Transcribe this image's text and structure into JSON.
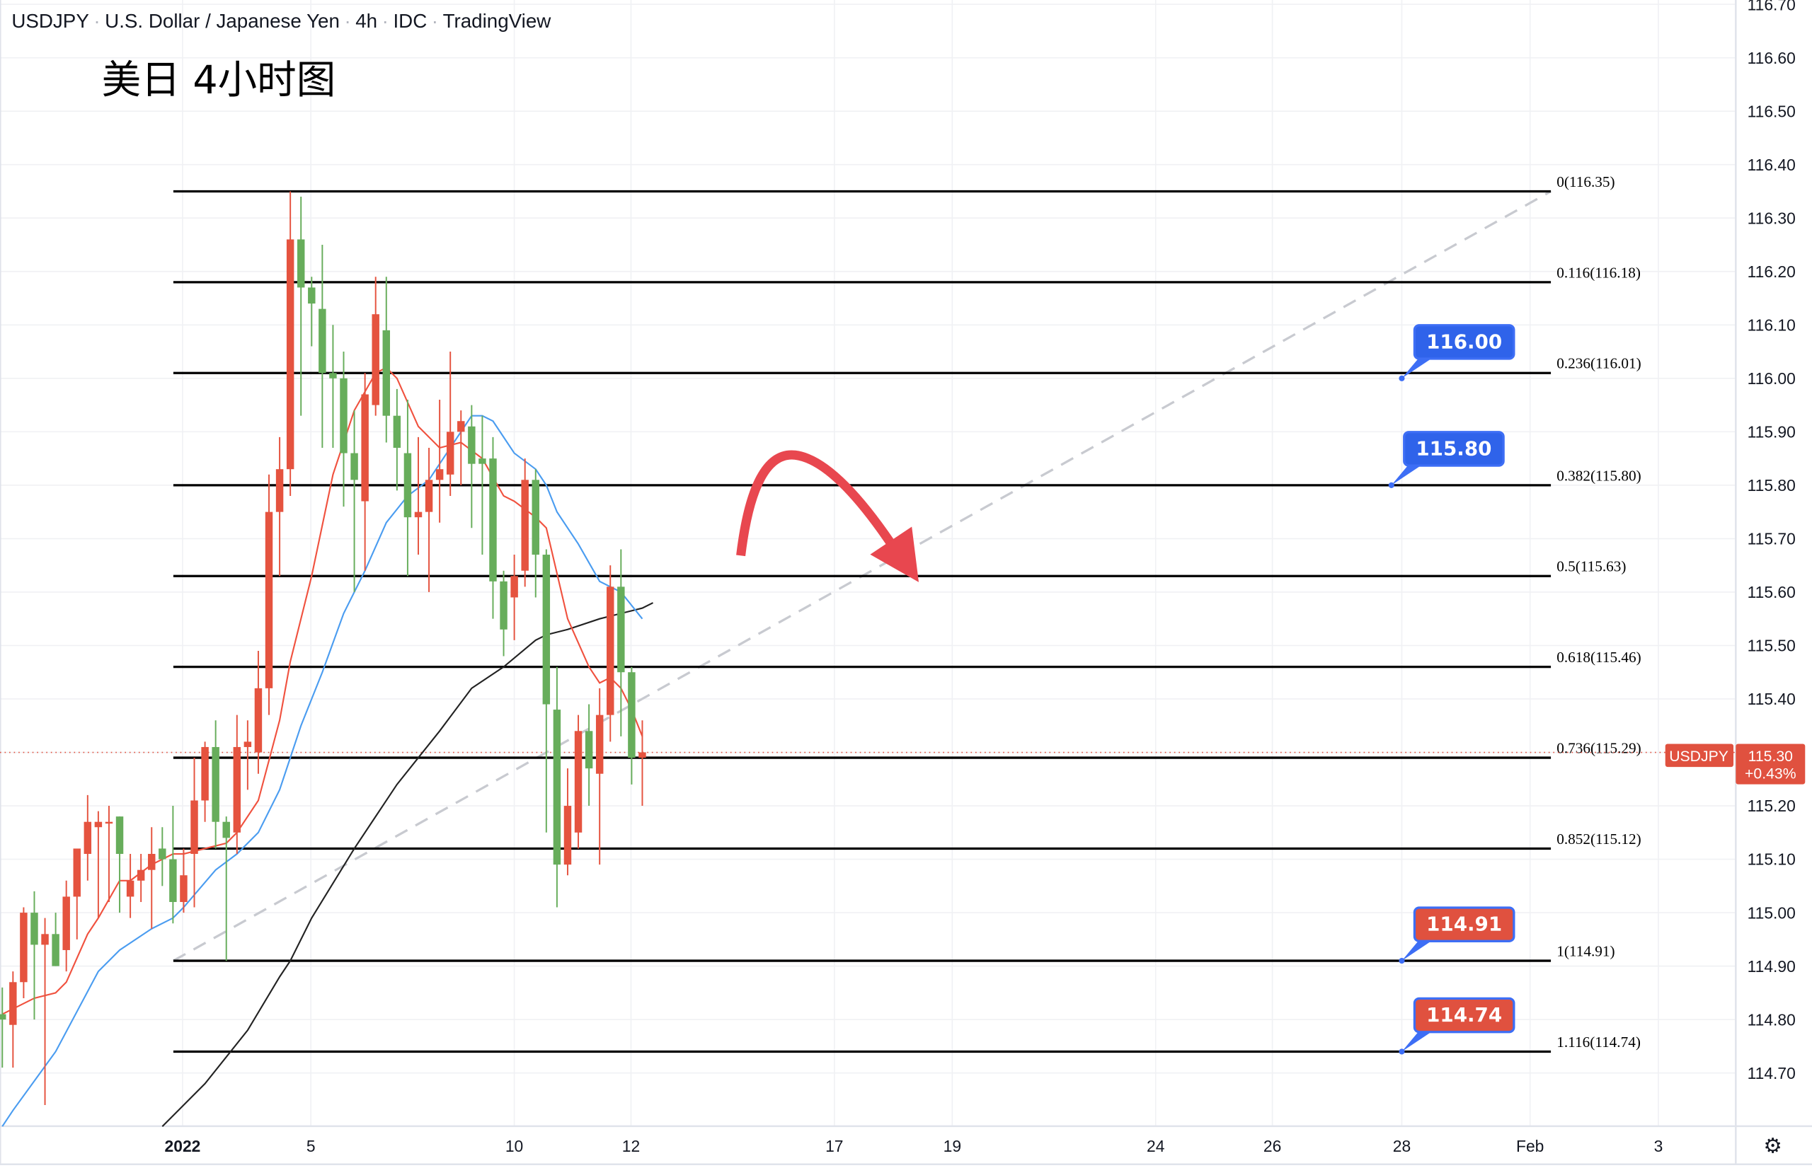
{
  "header": {
    "symbol": "USDJPY",
    "description": "U.S. Dollar / Japanese Yen",
    "interval": "4h",
    "source": "IDC",
    "platform": "TradingView"
  },
  "annotation_title": "美日 4小时图",
  "settings_icon": "gear-icon",
  "colors": {
    "up": "#e5533f",
    "down": "#67ad5b",
    "ma_short": "#f0513e",
    "ma_mid": "#4a9cf0",
    "ma_long": "#222222",
    "fib_line": "#000000",
    "trend_dashed": "#c8cad0",
    "arrow": "#e8474f",
    "callout_blue": "#2f63ea",
    "callout_red": "#e0513f",
    "callout_border": "#3d6ef5",
    "price_tag": "#e0513f"
  },
  "current_price": {
    "symbol_tag": "USDJPY",
    "price": "115.30",
    "change": "+0.43%",
    "value": 115.3
  },
  "callouts": [
    {
      "label": "116.00",
      "value": 116.0,
      "style": "blue"
    },
    {
      "label": "115.80",
      "value": 115.8,
      "style": "blue"
    },
    {
      "label": "114.91",
      "value": 114.91,
      "style": "red"
    },
    {
      "label": "114.74",
      "value": 114.74,
      "style": "red"
    }
  ],
  "fib": {
    "anchor_high": 116.35,
    "anchor_low": 114.91,
    "levels": [
      {
        "label": "0(116.35)",
        "price": 116.35
      },
      {
        "label": "0.116(116.18)",
        "price": 116.18
      },
      {
        "label": "0.236(116.01)",
        "price": 116.01
      },
      {
        "label": "0.382(115.80)",
        "price": 115.8
      },
      {
        "label": "0.5(115.63)",
        "price": 115.63
      },
      {
        "label": "0.618(115.46)",
        "price": 115.46
      },
      {
        "label": "0.736(115.29)",
        "price": 115.29
      },
      {
        "label": "0.852(115.12)",
        "price": 115.12
      },
      {
        "label": "1(114.91)",
        "price": 114.91
      },
      {
        "label": "1.116(114.74)",
        "price": 114.74
      }
    ]
  },
  "chart_data": {
    "type": "candlestick",
    "title": "USDJPY · U.S. Dollar / Japanese Yen · 4h · IDC · TradingView",
    "ylim": [
      114.6,
      116.7
    ],
    "grid": true,
    "y_ticks": [
      "116.70",
      "116.60",
      "116.50",
      "116.40",
      "116.30",
      "116.20",
      "116.10",
      "116.00",
      "115.90",
      "115.80",
      "115.70",
      "115.60",
      "115.50",
      "115.40",
      "115.30",
      "115.20",
      "115.10",
      "115.00",
      "114.90",
      "114.80",
      "114.70"
    ],
    "x_ticks": [
      "2022",
      "5",
      "10",
      "12",
      "17",
      "19",
      "24",
      "26",
      "28",
      "Feb",
      "3"
    ],
    "candles_ohlc": [
      [
        114.81,
        114.86,
        114.71,
        114.8
      ],
      [
        114.79,
        114.89,
        114.71,
        114.87
      ],
      [
        114.87,
        115.01,
        114.84,
        115.0
      ],
      [
        115.0,
        115.04,
        114.8,
        114.94
      ],
      [
        114.94,
        114.99,
        114.64,
        114.96
      ],
      [
        114.96,
        115.0,
        114.9,
        114.9
      ],
      [
        114.93,
        115.06,
        114.89,
        115.03
      ],
      [
        115.03,
        115.12,
        114.95,
        115.12
      ],
      [
        115.11,
        115.22,
        115.06,
        115.17
      ],
      [
        115.16,
        115.19,
        114.99,
        115.17
      ],
      [
        115.17,
        115.2,
        115.02,
        115.17
      ],
      [
        115.18,
        115.18,
        115.0,
        115.11
      ],
      [
        115.03,
        115.11,
        114.99,
        115.06
      ],
      [
        115.06,
        115.11,
        115.02,
        115.08
      ],
      [
        115.08,
        115.16,
        114.97,
        115.11
      ],
      [
        115.12,
        115.16,
        115.05,
        115.1
      ],
      [
        115.1,
        115.2,
        114.98,
        115.02
      ],
      [
        115.02,
        115.12,
        115.0,
        115.07
      ],
      [
        115.11,
        115.29,
        115.01,
        115.21
      ],
      [
        115.21,
        115.32,
        115.17,
        115.31
      ],
      [
        115.31,
        115.36,
        115.12,
        115.17
      ],
      [
        115.17,
        115.18,
        114.91,
        115.14
      ],
      [
        115.15,
        115.37,
        115.11,
        115.31
      ],
      [
        115.31,
        115.36,
        115.23,
        115.32
      ],
      [
        115.3,
        115.49,
        115.26,
        115.42
      ],
      [
        115.42,
        115.82,
        115.37,
        115.75
      ],
      [
        115.75,
        115.89,
        115.63,
        115.83
      ],
      [
        115.83,
        116.35,
        115.78,
        116.26
      ],
      [
        116.26,
        116.34,
        115.93,
        116.17
      ],
      [
        116.17,
        116.19,
        116.06,
        116.14
      ],
      [
        116.13,
        116.25,
        115.87,
        116.01
      ],
      [
        116.01,
        116.1,
        115.87,
        116.0
      ],
      [
        116.0,
        116.05,
        115.76,
        115.86
      ],
      [
        115.86,
        115.94,
        115.6,
        115.81
      ],
      [
        115.77,
        116.01,
        115.64,
        115.97
      ],
      [
        115.95,
        116.19,
        115.93,
        116.12
      ],
      [
        116.09,
        116.19,
        115.88,
        115.93
      ],
      [
        115.93,
        115.98,
        115.79,
        115.87
      ],
      [
        115.86,
        115.96,
        115.63,
        115.74
      ],
      [
        115.74,
        115.89,
        115.67,
        115.75
      ],
      [
        115.75,
        115.87,
        115.6,
        115.81
      ],
      [
        115.81,
        115.96,
        115.73,
        115.83
      ],
      [
        115.82,
        116.05,
        115.78,
        115.9
      ],
      [
        115.9,
        115.94,
        115.8,
        115.92
      ],
      [
        115.91,
        115.95,
        115.72,
        115.84
      ],
      [
        115.85,
        115.93,
        115.67,
        115.84
      ],
      [
        115.85,
        115.89,
        115.55,
        115.62
      ],
      [
        115.62,
        115.64,
        115.48,
        115.53
      ],
      [
        115.59,
        115.67,
        115.51,
        115.63
      ],
      [
        115.64,
        115.85,
        115.61,
        115.81
      ],
      [
        115.81,
        115.83,
        115.59,
        115.67
      ],
      [
        115.67,
        115.68,
        115.15,
        115.39
      ],
      [
        115.38,
        115.46,
        115.01,
        115.09
      ],
      [
        115.09,
        115.27,
        115.07,
        115.2
      ],
      [
        115.15,
        115.37,
        115.12,
        115.34
      ],
      [
        115.34,
        115.39,
        115.2,
        115.27
      ],
      [
        115.26,
        115.42,
        115.09,
        115.37
      ],
      [
        115.37,
        115.65,
        115.32,
        115.61
      ],
      [
        115.61,
        115.68,
        115.33,
        115.45
      ],
      [
        115.45,
        115.46,
        115.24,
        115.29
      ],
      [
        115.29,
        115.36,
        115.2,
        115.3
      ]
    ],
    "ma_short": [
      [
        1,
        114.81
      ],
      [
        4,
        114.84
      ],
      [
        6,
        114.85
      ],
      [
        7,
        114.87
      ],
      [
        9,
        114.96
      ],
      [
        10,
        114.99
      ],
      [
        12,
        115.06
      ],
      [
        13,
        115.06
      ],
      [
        15,
        115.09
      ],
      [
        17,
        115.11
      ],
      [
        18,
        115.11
      ],
      [
        20,
        115.12
      ],
      [
        22,
        115.13
      ],
      [
        23,
        115.15
      ],
      [
        25,
        115.21
      ],
      [
        27,
        115.36
      ],
      [
        28,
        115.47
      ],
      [
        30,
        115.63
      ],
      [
        32,
        115.82
      ],
      [
        34,
        115.94
      ],
      [
        36,
        116.01
      ],
      [
        37,
        116.02
      ],
      [
        38,
        116.0
      ],
      [
        40,
        115.91
      ],
      [
        42,
        115.87
      ],
      [
        44,
        115.88
      ],
      [
        46,
        115.85
      ],
      [
        48,
        115.78
      ],
      [
        49,
        115.77
      ],
      [
        51,
        115.74
      ],
      [
        52,
        115.72
      ],
      [
        54,
        115.55
      ],
      [
        56,
        115.46
      ],
      [
        57,
        115.43
      ],
      [
        58,
        115.44
      ],
      [
        59,
        115.42
      ],
      [
        60,
        115.38
      ],
      [
        61,
        115.33
      ]
    ],
    "ma_mid": [
      [
        1,
        114.6
      ],
      [
        2,
        114.63
      ],
      [
        6,
        114.74
      ],
      [
        10,
        114.89
      ],
      [
        12,
        114.93
      ],
      [
        15,
        114.97
      ],
      [
        17,
        114.99
      ],
      [
        18,
        115.01
      ],
      [
        21,
        115.08
      ],
      [
        23,
        115.11
      ],
      [
        25,
        115.15
      ],
      [
        27,
        115.23
      ],
      [
        29,
        115.35
      ],
      [
        31,
        115.45
      ],
      [
        33,
        115.56
      ],
      [
        35,
        115.64
      ],
      [
        37,
        115.73
      ],
      [
        39,
        115.78
      ],
      [
        41,
        115.81
      ],
      [
        43,
        115.87
      ],
      [
        45,
        115.93
      ],
      [
        46,
        115.93
      ],
      [
        47,
        115.92
      ],
      [
        49,
        115.86
      ],
      [
        51,
        115.83
      ],
      [
        52,
        115.8
      ],
      [
        53,
        115.75
      ],
      [
        55,
        115.69
      ],
      [
        57,
        115.62
      ],
      [
        59,
        115.6
      ],
      [
        61,
        115.55
      ]
    ],
    "ma_long": [
      [
        16,
        114.6
      ],
      [
        20,
        114.68
      ],
      [
        24,
        114.78
      ],
      [
        27,
        114.88
      ],
      [
        28,
        114.91
      ],
      [
        30,
        114.99
      ],
      [
        34,
        115.12
      ],
      [
        36,
        115.18
      ],
      [
        38,
        115.24
      ],
      [
        40,
        115.29
      ],
      [
        42,
        115.34
      ],
      [
        45,
        115.42
      ],
      [
        48,
        115.46
      ],
      [
        51,
        115.51
      ],
      [
        52,
        115.52
      ],
      [
        54,
        115.53
      ],
      [
        57,
        115.55
      ],
      [
        59,
        115.56
      ],
      [
        61,
        115.57
      ],
      [
        62,
        115.58
      ]
    ]
  }
}
